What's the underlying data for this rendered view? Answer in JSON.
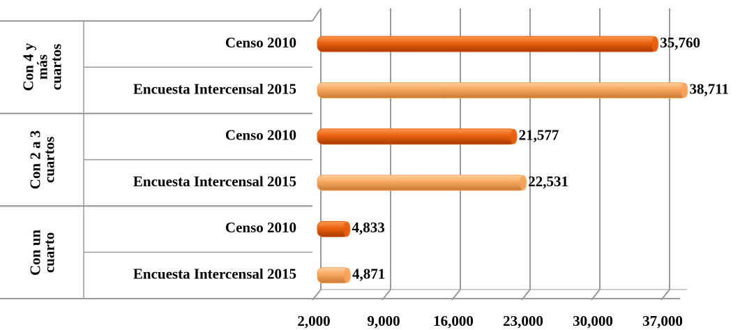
{
  "chart_data": {
    "type": "bar",
    "groups": [
      "Con 4 y más cuartos",
      "Con 2 a 3 cuartos",
      "Con un cuarto"
    ],
    "series": [
      {
        "name": "Censo 2010",
        "color": "#e8600f",
        "values": [
          35760,
          21577,
          4833
        ],
        "value_labels": [
          "35,760",
          "21,577",
          "4,833"
        ]
      },
      {
        "name": "Encuesta Intercensal 2015",
        "color": "#f7a55c",
        "values": [
          38711,
          22531,
          4871
        ],
        "value_labels": [
          "38,711",
          "22,531",
          "4,871"
        ]
      }
    ],
    "xlim": [
      2000,
      40000
    ],
    "xticks": [
      {
        "value": 2000,
        "label": "2,000"
      },
      {
        "value": 9000,
        "label": "9,000"
      },
      {
        "value": 16000,
        "label": "16,000"
      },
      {
        "value": 23000,
        "label": "23,000"
      },
      {
        "value": 30000,
        "label": "30,000"
      },
      {
        "value": 37000,
        "label": "37,000"
      }
    ],
    "grid": true
  }
}
